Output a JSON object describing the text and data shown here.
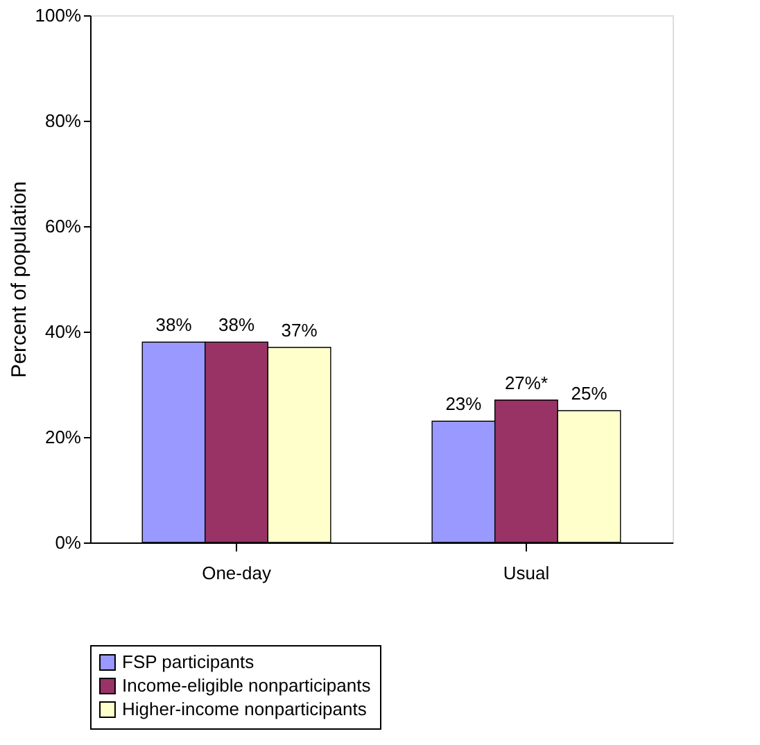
{
  "chart_data": {
    "type": "bar",
    "categories": [
      "One-day",
      "Usual"
    ],
    "series": [
      {
        "name": "FSP participants",
        "color": "#9999ff",
        "values": [
          38,
          23
        ],
        "value_labels": [
          "38%",
          "23%"
        ]
      },
      {
        "name": "Income-eligible nonparticipants",
        "color": "#993366",
        "values": [
          38,
          27
        ],
        "value_labels": [
          "38%",
          "27%*"
        ]
      },
      {
        "name": "Higher-income nonparticipants",
        "color": "#ffffcc",
        "values": [
          37,
          25
        ],
        "value_labels": [
          "37%",
          "25%"
        ]
      }
    ],
    "ylabel": "Percent of population",
    "ylim": [
      0,
      100
    ],
    "yticks": [
      {
        "value": 0,
        "label": "0%"
      },
      {
        "value": 20,
        "label": "20%"
      },
      {
        "value": 40,
        "label": "40%"
      },
      {
        "value": 60,
        "label": "60%"
      },
      {
        "value": 80,
        "label": "80%"
      },
      {
        "value": 100,
        "label": "100%"
      }
    ],
    "legend": "bottom"
  }
}
